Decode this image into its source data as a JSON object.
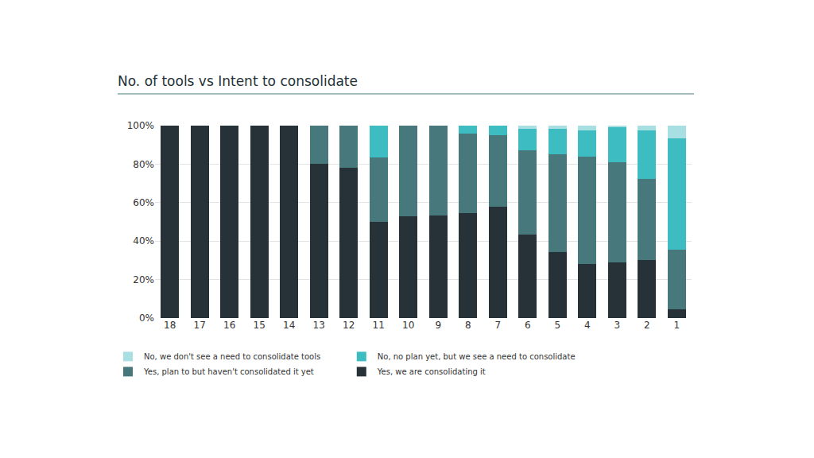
{
  "chart_data": {
    "type": "bar",
    "title": "No. of tools vs Intent to consolidate",
    "stacked": true,
    "grid": true,
    "legend": "bottom",
    "categories": [
      18,
      17,
      16,
      15,
      14,
      13,
      12,
      11,
      10,
      9,
      8,
      7,
      6,
      5,
      4,
      3,
      2,
      1
    ],
    "series": [
      {
        "name": "Yes, we are consolidating it",
        "color": "#263238",
        "values": [
          100,
          100,
          100,
          100,
          100,
          80,
          78,
          50,
          53,
          53.5,
          54.5,
          58,
          43.5,
          34.5,
          28,
          29,
          30,
          4.5
        ]
      },
      {
        "name": "Yes, plan to but haven't consolidated it yet",
        "color": "#47787c",
        "values": [
          0,
          0,
          0,
          0,
          0,
          20,
          22,
          33.5,
          47,
          46.5,
          41.5,
          37,
          43.5,
          50.5,
          56,
          52,
          42.5,
          31
        ]
      },
      {
        "name": "No, no plan yet, but we see a need to consolidate",
        "color": "#3dbdc2",
        "values": [
          0,
          0,
          0,
          0,
          0,
          0,
          0,
          16.5,
          0,
          0,
          4,
          5,
          11.5,
          13.5,
          13.5,
          18,
          25,
          58
        ]
      },
      {
        "name": "No, we don't see a need to consolidate tools",
        "color": "#a8dfe2",
        "values": [
          0,
          0,
          0,
          0,
          0,
          0,
          0,
          0,
          0,
          0,
          0,
          0,
          1.5,
          1.5,
          2.5,
          1,
          2.5,
          6.5
        ]
      }
    ],
    "ylim": [
      0,
      100
    ],
    "yticks": [
      {
        "value": 0,
        "label": "0%"
      },
      {
        "value": 20,
        "label": "20%"
      },
      {
        "value": 40,
        "label": "40%"
      },
      {
        "value": 60,
        "label": "60%"
      },
      {
        "value": 80,
        "label": "80%"
      },
      {
        "value": 100,
        "label": "100%"
      }
    ]
  }
}
